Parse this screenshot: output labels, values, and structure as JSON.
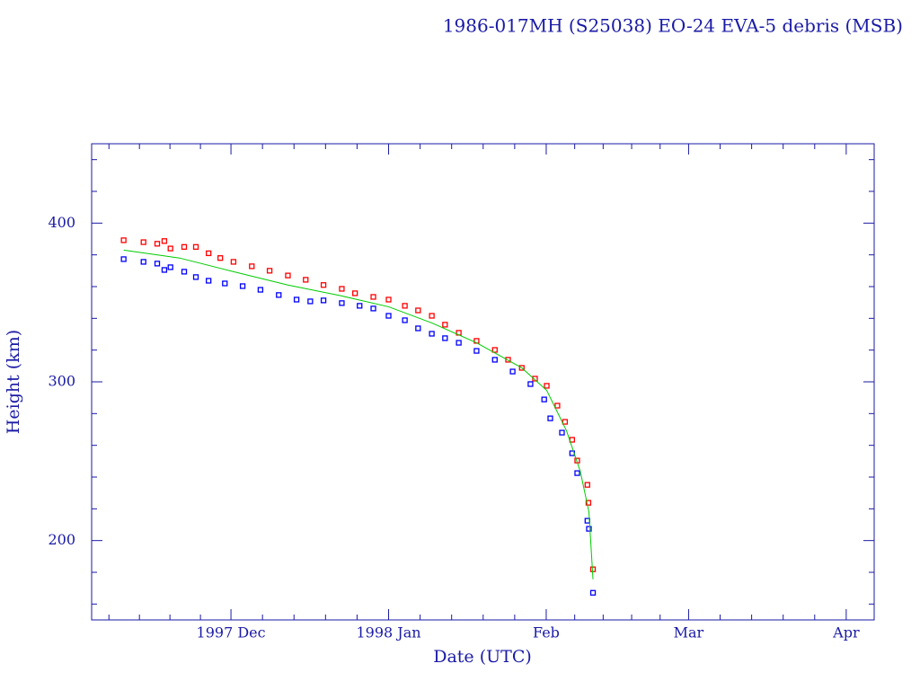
{
  "chart_data": {
    "type": "scatter",
    "title": "1986-017MH (S25038) EO-24 EVA-5 debris (MSB)",
    "x_label": "Date (UTC)",
    "y_label": "Height (km)",
    "xlim": [
      -27.4,
      126.5
    ],
    "ylim": [
      150,
      450
    ],
    "xticks": [
      {
        "value": 0,
        "label": "1997 Dec"
      },
      {
        "value": 31,
        "label": "1998 Jan"
      },
      {
        "value": 62,
        "label": "Feb"
      },
      {
        "value": 90,
        "label": "Mar"
      },
      {
        "value": 121,
        "label": "Apr"
      }
    ],
    "xminorticks": [
      -24,
      -18,
      -12,
      -6,
      6.2,
      12.4,
      18.6,
      24.8,
      37.2,
      43.4,
      49.6,
      55.8,
      67.6,
      73.2,
      78.8,
      84.4,
      96.2,
      102.4,
      108.6,
      114.8
    ],
    "yticks": [
      200,
      300,
      400
    ],
    "yminorticks": [
      160,
      180,
      220,
      240,
      260,
      280,
      320,
      340,
      360,
      380,
      420,
      440
    ],
    "series": [
      {
        "color": "#ff0000",
        "marker": "square",
        "x": [
          -21.1,
          -17.2,
          -14.5,
          -13.1,
          -11.9,
          -9.2,
          -6.9,
          -4.4,
          -2.1,
          0.5,
          4.1,
          7.6,
          11.2,
          14.7,
          18.2,
          21.8,
          24.4,
          28.0,
          31.0,
          34.2,
          36.8,
          39.5,
          42.1,
          44.8,
          48.3,
          51.9,
          54.5,
          57.2,
          59.8,
          62.1,
          64.2,
          65.7,
          67.1,
          68.1,
          70.1,
          70.3,
          71.2
        ],
        "values": [
          389.2,
          388,
          387,
          388.7,
          384,
          385,
          385,
          381,
          378,
          375.6,
          372.8,
          370,
          367,
          364.3,
          361,
          358.6,
          355.8,
          353.5,
          351.8,
          347.9,
          345,
          341.6,
          336,
          330.9,
          325.8,
          320.1,
          313.9,
          308.8,
          302,
          297.5,
          285,
          274.8,
          263.5,
          250.4,
          235.1,
          223.8,
          181.9
        ]
      },
      {
        "color": "#0000ff",
        "marker": "square",
        "x": [
          -21.1,
          -17.2,
          -14.5,
          -13.1,
          -11.9,
          -9.2,
          -6.9,
          -4.4,
          -1.2,
          2.3,
          5.8,
          9.4,
          12.9,
          15.6,
          18.2,
          21.8,
          25.3,
          28.0,
          31.0,
          34.2,
          36.8,
          39.5,
          42.1,
          44.8,
          48.3,
          51.9,
          55.4,
          58.9,
          61.6,
          62.8,
          65.1,
          67.1,
          68.1,
          70.1,
          70.4,
          71.2
        ],
        "values": [
          377.3,
          375.6,
          374.5,
          370.5,
          372.2,
          369.4,
          366,
          363.7,
          362,
          360.3,
          358,
          354.7,
          351.8,
          350.7,
          351.3,
          349.6,
          347.9,
          346.2,
          341.6,
          338.8,
          333.7,
          330.3,
          327.5,
          324.6,
          319.5,
          313.9,
          306.5,
          298.6,
          288.9,
          277,
          268,
          255,
          242.5,
          212.5,
          207.4,
          167.1
        ]
      },
      {
        "color": "#00cc00",
        "marker": "line",
        "x": [
          -21.1,
          -10.1,
          0.5,
          11.2,
          21.8,
          31.0,
          39.5,
          48.3,
          57.2,
          62.1,
          66.0,
          68.7,
          70.4,
          71.2
        ],
        "values": [
          383,
          378,
          369.4,
          361,
          354.1,
          347.3,
          337.1,
          324.6,
          308.8,
          294.6,
          269.1,
          243.6,
          218.1,
          175.6
        ]
      }
    ]
  }
}
